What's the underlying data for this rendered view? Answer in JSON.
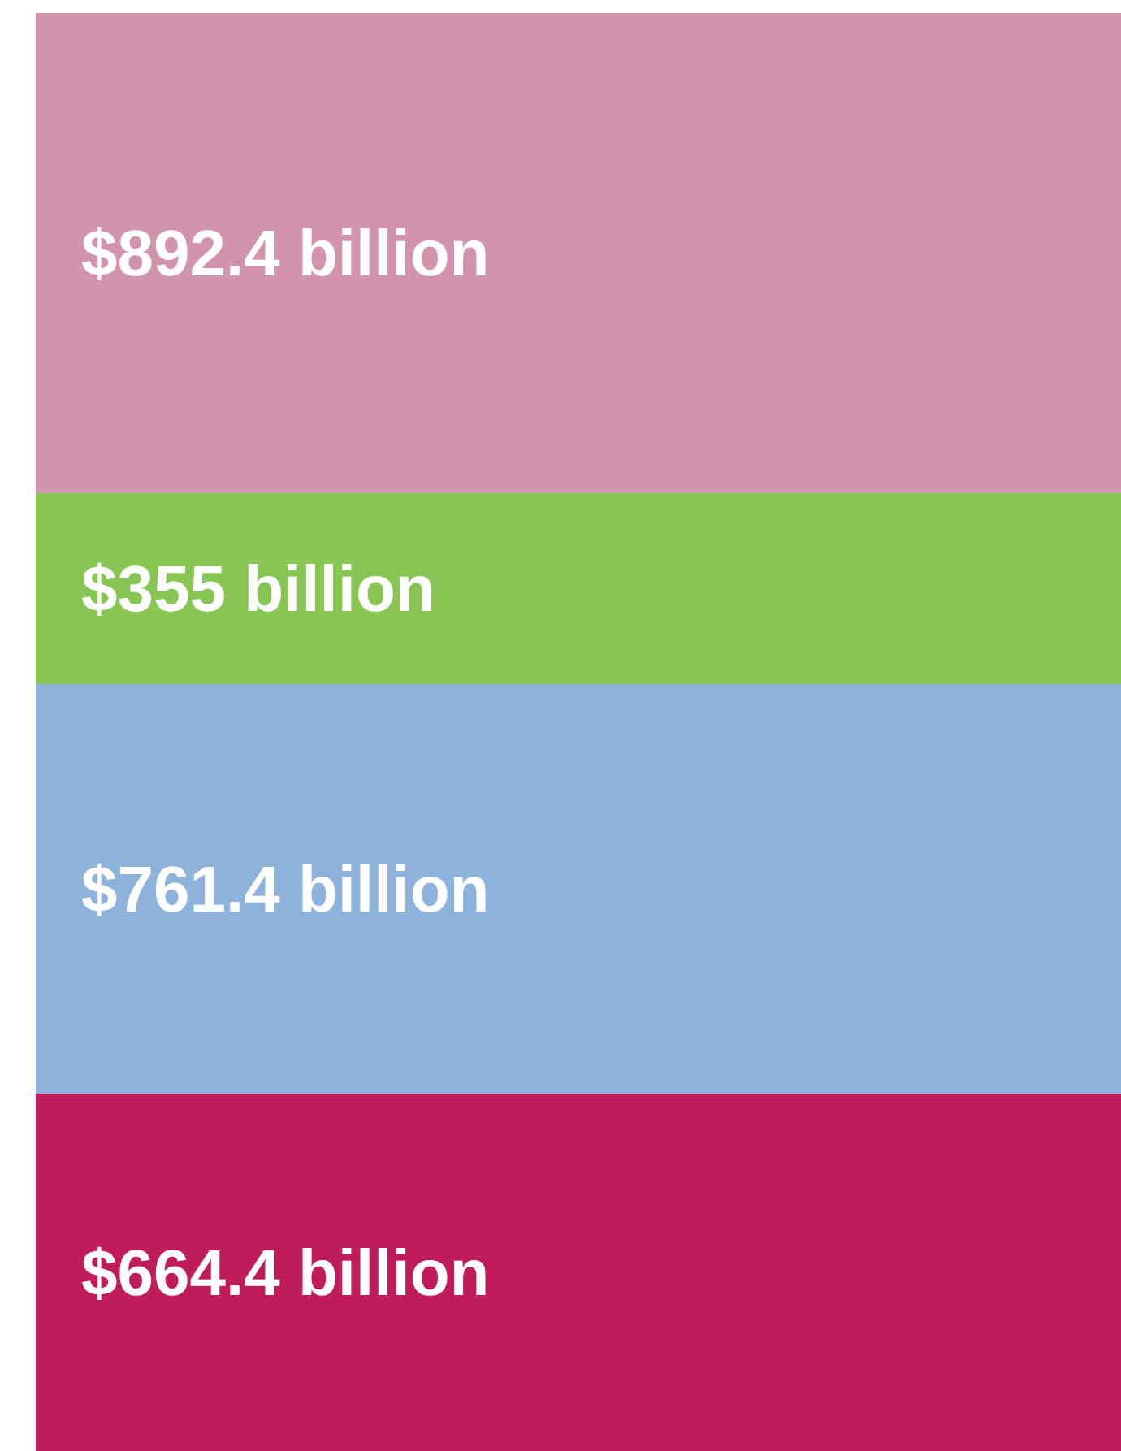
{
  "chart_data": {
    "type": "bar",
    "stacked": true,
    "categories": [
      null
    ],
    "series": [
      {
        "color": "#c01c5b",
        "values": [
          664.4
        ],
        "value_labels": [
          "$664.4 billion"
        ]
      },
      {
        "color": "#8db3dd",
        "values": [
          761.4
        ],
        "value_labels": [
          "$761.4 billion"
        ]
      },
      {
        "color": "#88c653",
        "values": [
          355
        ],
        "value_labels": [
          "$355 billion"
        ]
      },
      {
        "color": "#d293ae",
        "values": [
          892.4
        ],
        "value_labels": [
          "$892.4 billion"
        ]
      }
    ]
  }
}
